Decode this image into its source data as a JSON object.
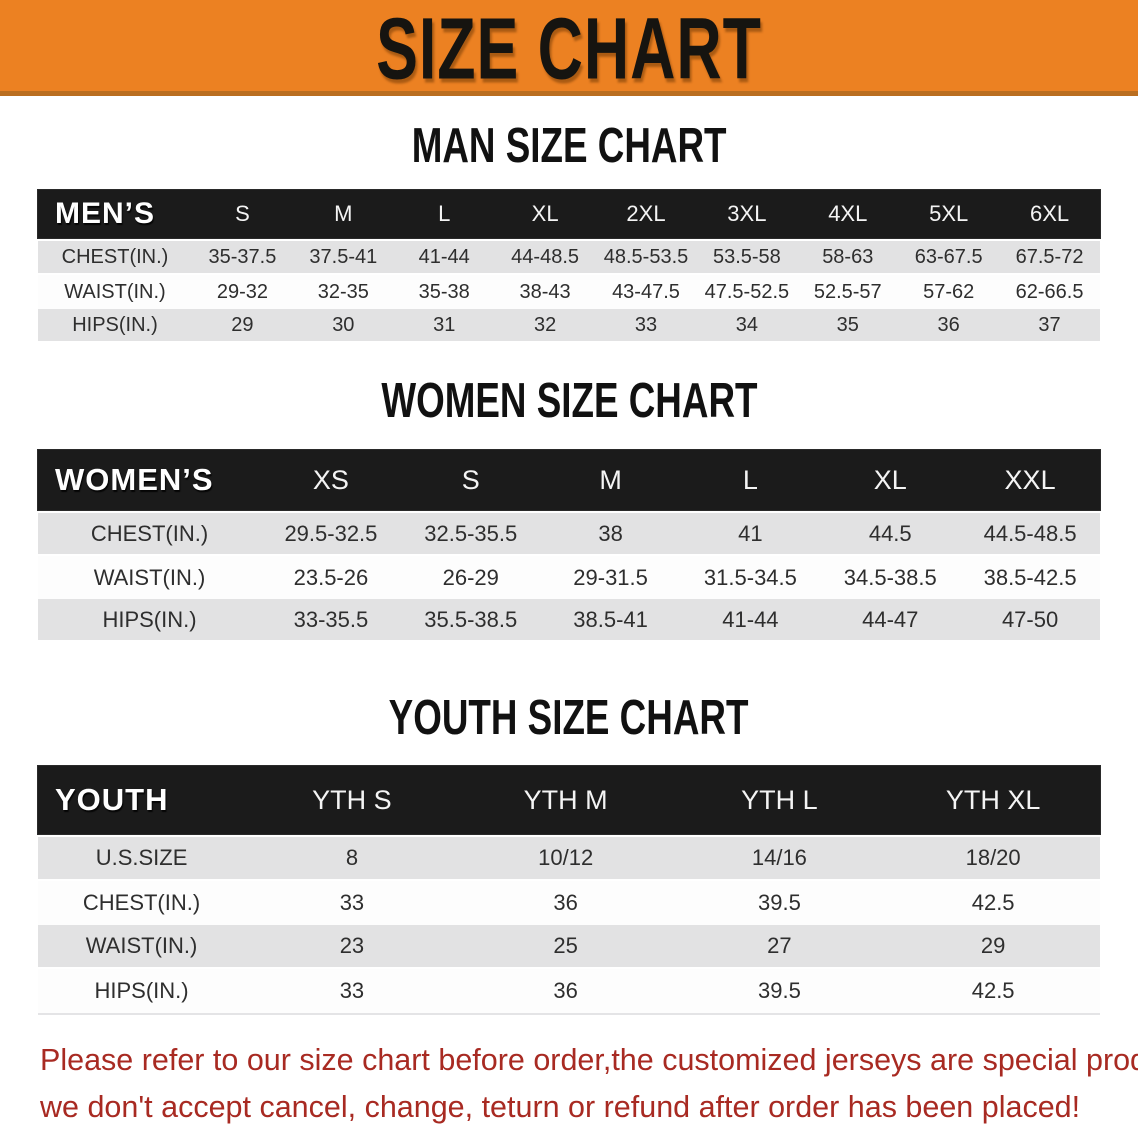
{
  "banner": {
    "title": "SIZE CHART"
  },
  "colors": {
    "banner_bg": "#EC8122",
    "banner_border": "#BA6E20",
    "table_header_bg": "#1B1B1B",
    "row_gray": "#E2E2E3",
    "row_white": "#FDFDFD",
    "disclaimer_red": "#A82A22"
  },
  "sections": [
    {
      "heading": "MAN SIZE CHART",
      "table": {
        "label": "MEN’S",
        "columns": [
          "S",
          "M",
          "L",
          "XL",
          "2XL",
          "3XL",
          "4XL",
          "5XL",
          "6XL"
        ],
        "rows": [
          {
            "label": "CHEST(IN.)",
            "values": [
              "35-37.5",
              "37.5-41",
              "41-44",
              "44-48.5",
              "48.5-53.5",
              "53.5-58",
              "58-63",
              "63-67.5",
              "67.5-72"
            ]
          },
          {
            "label": "WAIST(IN.)",
            "values": [
              "29-32",
              "32-35",
              "35-38",
              "38-43",
              "43-47.5",
              "47.5-52.5",
              "52.5-57",
              "57-62",
              "62-66.5"
            ]
          },
          {
            "label": "HIPS(IN.)",
            "values": [
              "29",
              "30",
              "31",
              "32",
              "33",
              "34",
              "35",
              "36",
              "37"
            ]
          }
        ]
      }
    },
    {
      "heading": "WOMEN SIZE CHART",
      "table": {
        "label": "WOMEN’S",
        "columns": [
          "XS",
          "S",
          "M",
          "L",
          "XL",
          "XXL"
        ],
        "rows": [
          {
            "label": "CHEST(IN.)",
            "values": [
              "29.5-32.5",
              "32.5-35.5",
              "38",
              "41",
              "44.5",
              "44.5-48.5"
            ]
          },
          {
            "label": "WAIST(IN.)",
            "values": [
              "23.5-26",
              "26-29",
              "29-31.5",
              "31.5-34.5",
              "34.5-38.5",
              "38.5-42.5"
            ]
          },
          {
            "label": "HIPS(IN.)",
            "values": [
              "33-35.5",
              "35.5-38.5",
              "38.5-41",
              "41-44",
              "44-47",
              "47-50"
            ]
          }
        ]
      }
    },
    {
      "heading": "YOUTH SIZE CHART",
      "table": {
        "label": "YOUTH",
        "columns": [
          "YTH S",
          "YTH M",
          "YTH L",
          "YTH XL"
        ],
        "rows": [
          {
            "label": "U.S.SIZE",
            "values": [
              "8",
              "10/12",
              "14/16",
              "18/20"
            ]
          },
          {
            "label": "CHEST(IN.)",
            "values": [
              "33",
              "36",
              "39.5",
              "42.5"
            ]
          },
          {
            "label": "WAIST(IN.)",
            "values": [
              "23",
              "25",
              "27",
              "29"
            ]
          },
          {
            "label": "HIPS(IN.)",
            "values": [
              "33",
              "36",
              "39.5",
              "42.5"
            ]
          }
        ]
      }
    }
  ],
  "disclaimer": {
    "line1": "Please refer to our size chart before order,the customized jerseys are special products,",
    "line2": "we don't accept cancel, change, teturn or refund after order has been placed!"
  }
}
